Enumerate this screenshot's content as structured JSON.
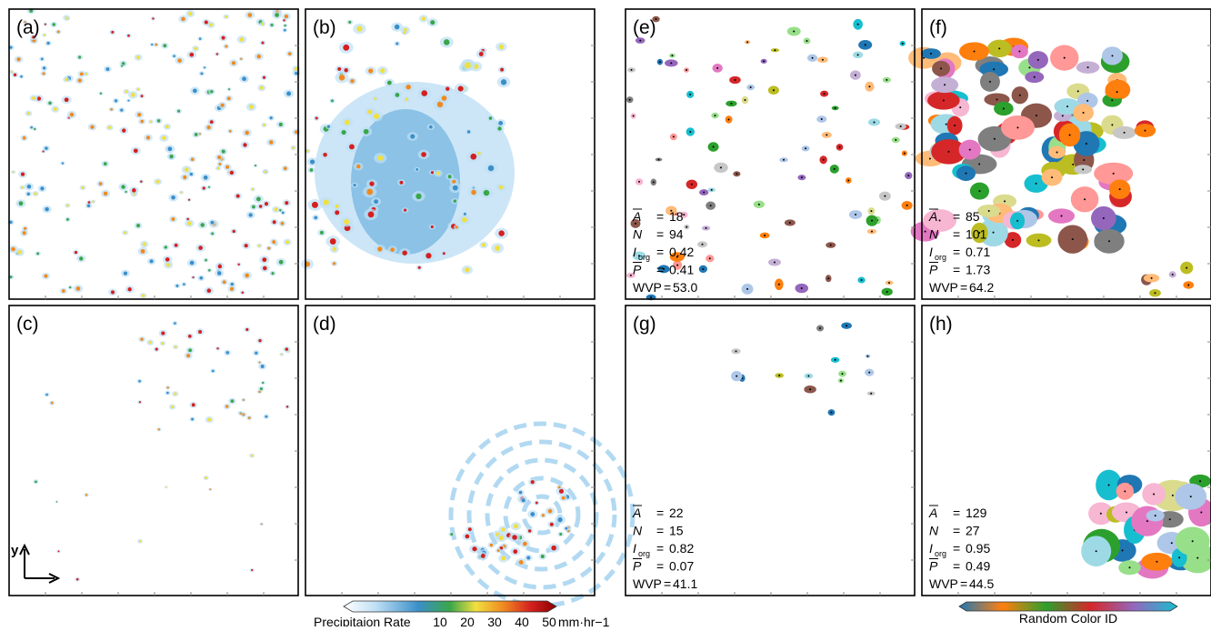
{
  "panels": [
    {
      "label": "(a)"
    },
    {
      "label": "(b)"
    },
    {
      "label": "(c)"
    },
    {
      "label": "(d)"
    },
    {
      "label": "(e)",
      "stats": [
        {
          "name": "A",
          "value": 18
        },
        {
          "name": "N",
          "value": 94
        },
        {
          "name": "I",
          "sub": "org",
          "value": 0.42
        },
        {
          "name": "P",
          "value": 0.41
        },
        {
          "name": "WVP",
          "value": 53.0,
          "value_label": "53.0"
        }
      ]
    },
    {
      "label": "(f)",
      "stats": [
        {
          "name": "A",
          "value": 85
        },
        {
          "name": "N",
          "value": 101
        },
        {
          "name": "I",
          "sub": "org",
          "value": 0.71
        },
        {
          "name": "P",
          "value": 1.73
        },
        {
          "name": "WVP",
          "value": 64.2,
          "value_label": "64.2"
        }
      ]
    },
    {
      "label": "(g)",
      "stats": [
        {
          "name": "A",
          "value": 22
        },
        {
          "name": "N",
          "value": 15
        },
        {
          "name": "I",
          "sub": "org",
          "value": 0.82
        },
        {
          "name": "P",
          "value": 0.07
        },
        {
          "name": "WVP",
          "value": 41.1,
          "value_label": "41.1"
        }
      ]
    },
    {
      "label": "(h)",
      "stats": [
        {
          "name": "A",
          "value": 129
        },
        {
          "name": "N",
          "value": 27
        },
        {
          "name": "I",
          "sub": "org",
          "value": 0.95
        },
        {
          "name": "P",
          "value": 0.49
        },
        {
          "name": "WVP",
          "value": 44.5,
          "value_label": "44.5"
        }
      ]
    }
  ],
  "stats_sep": "=",
  "axis_label": "y",
  "precip_colorbar": {
    "title": "Precipitaion Rate",
    "ticks": [
      10,
      20,
      30,
      40,
      50
    ],
    "unit": "mm·hr−1"
  },
  "id_colorbar": {
    "title": "Random Color ID"
  }
}
